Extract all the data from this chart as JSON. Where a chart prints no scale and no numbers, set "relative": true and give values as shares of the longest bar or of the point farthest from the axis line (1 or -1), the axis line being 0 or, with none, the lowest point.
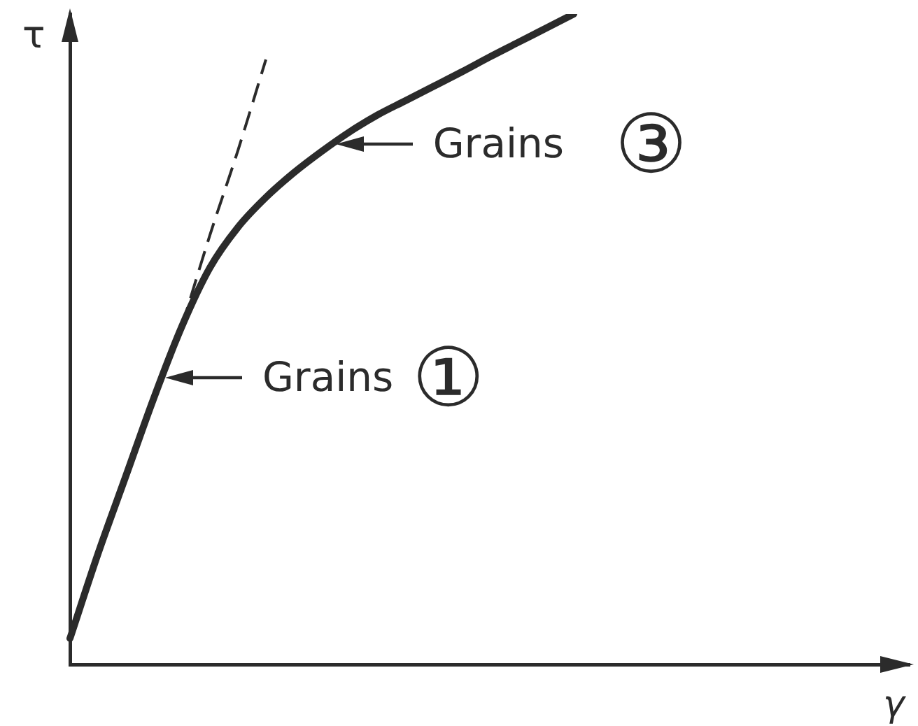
{
  "chart_data": {
    "type": "line",
    "xlabel": "γ",
    "ylabel": "τ",
    "relative": true,
    "categories": [
      null,
      null,
      null,
      null,
      null,
      null,
      null,
      null,
      null,
      null,
      null,
      null,
      null,
      null,
      null,
      null,
      null,
      null,
      null,
      null,
      null,
      null,
      null,
      null,
      null,
      null,
      null,
      null,
      null,
      null,
      null
    ],
    "series": [
      {
        "color": "#2b2b2b",
        "line_style": "solid",
        "values": [
          0.04,
          0.17,
          0.29,
          0.41,
          0.52,
          0.61,
          0.672,
          0.718,
          0.756,
          0.789,
          0.819,
          0.845,
          0.867,
          0.889,
          0.911,
          0.934,
          0.956,
          0.978,
          1,
          null,
          null,
          null,
          null,
          null,
          null,
          null,
          null,
          null,
          null,
          null,
          null
        ]
      },
      {
        "color": "#2b2b2b",
        "line_style": "dashed",
        "values": [
          null,
          null,
          null,
          null,
          0.52,
          0.66,
          0.79,
          0.93,
          null,
          null,
          null,
          null,
          null,
          null,
          null,
          null,
          null,
          null,
          null,
          null,
          null,
          null,
          null,
          null,
          null,
          null,
          null,
          null,
          null,
          null,
          null
        ]
      }
    ],
    "annotations": [
      "Grains ①",
      "Grains ③"
    ],
    "grid": false,
    "legend": false,
    "marker": "none"
  }
}
